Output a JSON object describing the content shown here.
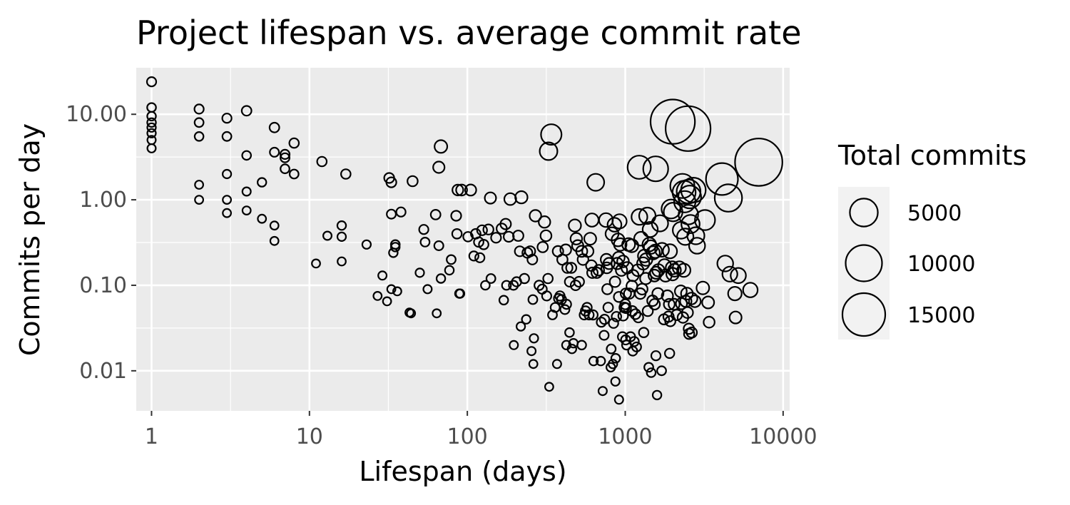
{
  "chart_data": {
    "type": "scatter",
    "title": "Project lifespan vs. average commit rate",
    "xlabel": "Lifespan (days)",
    "ylabel": "Commits per day",
    "x_scale": "log10",
    "y_scale": "log10",
    "xlim": [
      0.8,
      11000
    ],
    "ylim": [
      0.0034,
      35
    ],
    "x_ticks": [
      1,
      10,
      100,
      1000,
      10000
    ],
    "x_tick_labels": [
      "1",
      "10",
      "100",
      "1000",
      "10000"
    ],
    "y_ticks": [
      0.01,
      0.1,
      1,
      10
    ],
    "y_tick_labels": [
      "0.01",
      "0.10",
      "1.00",
      "10.00"
    ],
    "grid": true,
    "point_fill": "none",
    "point_stroke": "#000000",
    "panel_background": "#ebebeb",
    "legend": {
      "title": "Total commits",
      "position": "right",
      "sizes": [
        5000,
        10000,
        15000
      ],
      "labels": [
        "5000",
        "10000",
        "15000"
      ]
    },
    "points": [
      [
        1,
        24,
        24
      ],
      [
        1,
        12,
        12
      ],
      [
        1,
        9.5,
        10
      ],
      [
        1,
        8,
        8
      ],
      [
        1,
        7,
        7
      ],
      [
        1,
        6,
        6
      ],
      [
        1,
        5,
        5
      ],
      [
        1,
        4,
        4
      ],
      [
        2,
        11.5,
        23
      ],
      [
        2,
        8,
        16
      ],
      [
        2,
        5.5,
        11
      ],
      [
        2,
        1.5,
        3
      ],
      [
        2,
        1,
        2
      ],
      [
        3,
        9,
        27
      ],
      [
        3,
        5.5,
        17
      ],
      [
        3,
        2,
        6
      ],
      [
        3,
        1,
        3
      ],
      [
        3,
        0.7,
        2
      ],
      [
        4,
        11,
        44
      ],
      [
        4,
        3.3,
        13
      ],
      [
        4,
        1.25,
        5
      ],
      [
        4,
        0.75,
        3
      ],
      [
        5,
        1.6,
        8
      ],
      [
        5,
        0.6,
        3
      ],
      [
        6,
        7,
        42
      ],
      [
        6,
        3.6,
        22
      ],
      [
        6,
        0.5,
        3
      ],
      [
        6,
        0.33,
        2
      ],
      [
        7,
        3.4,
        24
      ],
      [
        7,
        3.1,
        22
      ],
      [
        7,
        2.3,
        16
      ],
      [
        8,
        4.6,
        37
      ],
      [
        8,
        2,
        16
      ],
      [
        11,
        0.18,
        2
      ],
      [
        12,
        2.8,
        34
      ],
      [
        13,
        0.38,
        5
      ],
      [
        16,
        0.5,
        8
      ],
      [
        16,
        0.37,
        6
      ],
      [
        16,
        0.19,
        3
      ],
      [
        17,
        2,
        34
      ],
      [
        23,
        0.3,
        7
      ],
      [
        27,
        0.075,
        2
      ],
      [
        29,
        0.13,
        4
      ],
      [
        31,
        0.065,
        2
      ],
      [
        32,
        1.8,
        58
      ],
      [
        33,
        1.6,
        53
      ],
      [
        33,
        0.68,
        22
      ],
      [
        33,
        0.09,
        3
      ],
      [
        34,
        0.24,
        8
      ],
      [
        35,
        0.3,
        11
      ],
      [
        35,
        0.28,
        10
      ],
      [
        36,
        0.085,
        3
      ],
      [
        38,
        0.72,
        27
      ],
      [
        43,
        0.048,
        2
      ],
      [
        44,
        0.047,
        2
      ],
      [
        45,
        1.65,
        74
      ],
      [
        50,
        0.14,
        7
      ],
      [
        53,
        0.45,
        24
      ],
      [
        54,
        0.32,
        17
      ],
      [
        56,
        0.09,
        5
      ],
      [
        63,
        0.67,
        42
      ],
      [
        64,
        0.047,
        3
      ],
      [
        66,
        0.29,
        19
      ],
      [
        66,
        2.4,
        158
      ],
      [
        68,
        4.2,
        286
      ],
      [
        68,
        0.12,
        8
      ],
      [
        77,
        0.15,
        12
      ],
      [
        79,
        0.2,
        16
      ],
      [
        85,
        0.65,
        55
      ],
      [
        86,
        0.4,
        34
      ],
      [
        87,
        1.3,
        113
      ],
      [
        89,
        0.08,
        7
      ],
      [
        90,
        0.08,
        7
      ],
      [
        92,
        1.3,
        120
      ],
      [
        101,
        0.37,
        37
      ],
      [
        105,
        1.3,
        137
      ],
      [
        110,
        0.22,
        24
      ],
      [
        113,
        0.4,
        45
      ],
      [
        118,
        0.32,
        38
      ],
      [
        120,
        0.21,
        25
      ],
      [
        124,
        0.44,
        55
      ],
      [
        127,
        0.3,
        38
      ],
      [
        130,
        0.1,
        13
      ],
      [
        136,
        0.45,
        61
      ],
      [
        140,
        1.05,
        147
      ],
      [
        141,
        0.12,
        17
      ],
      [
        152,
        0.36,
        55
      ],
      [
        165,
        0.46,
        76
      ],
      [
        170,
        0.067,
        11
      ],
      [
        175,
        0.52,
        91
      ],
      [
        177,
        0.1,
        18
      ],
      [
        183,
        0.37,
        68
      ],
      [
        187,
        1.02,
        191
      ],
      [
        196,
        0.1,
        20
      ],
      [
        197,
        0.02,
        4
      ],
      [
        205,
        0.11,
        23
      ],
      [
        210,
        0.38,
        80
      ],
      [
        215,
        0.25,
        54
      ],
      [
        218,
        0.033,
        7
      ],
      [
        220,
        1.07,
        235
      ],
      [
        230,
        0.12,
        28
      ],
      [
        236,
        0.04,
        9
      ],
      [
        240,
        0.24,
        58
      ],
      [
        250,
        0.25,
        63
      ],
      [
        255,
        0.017,
        4
      ],
      [
        258,
        0.2,
        52
      ],
      [
        260,
        0.068,
        18
      ],
      [
        262,
        0.012,
        3
      ],
      [
        264,
        0.024,
        6
      ],
      [
        270,
        0.65,
        175
      ],
      [
        285,
        0.1,
        29
      ],
      [
        298,
        0.09,
        27
      ],
      [
        300,
        0.28,
        84
      ],
      [
        308,
        0.55,
        169
      ],
      [
        315,
        0.38,
        120
      ],
      [
        318,
        0.075,
        24
      ],
      [
        324,
        0.12,
        39
      ],
      [
        327,
        3.7,
        1200
      ],
      [
        330,
        0.0065,
        2
      ],
      [
        340,
        5.8,
        1972
      ],
      [
        346,
        0.045,
        16
      ],
      [
        360,
        0.055,
        20
      ],
      [
        370,
        0.012,
        4
      ],
      [
        375,
        0.25,
        94
      ],
      [
        378,
        0.07,
        26
      ],
      [
        386,
        0.075,
        29
      ],
      [
        395,
        0.068,
        27
      ],
      [
        400,
        0.2,
        80
      ],
      [
        415,
        0.052,
        22
      ],
      [
        420,
        0.26,
        109
      ],
      [
        424,
        0.02,
        8
      ],
      [
        425,
        0.06,
        26
      ],
      [
        430,
        0.16,
        69
      ],
      [
        444,
        0.028,
        12
      ],
      [
        445,
        0.11,
        49
      ],
      [
        455,
        0.16,
        73
      ],
      [
        460,
        0.018,
        8
      ],
      [
        470,
        0.021,
        10
      ],
      [
        480,
        0.5,
        240
      ],
      [
        485,
        0.1,
        49
      ],
      [
        490,
        0.35,
        172
      ],
      [
        500,
        0.29,
        145
      ],
      [
        510,
        0.11,
        56
      ],
      [
        530,
        0.02,
        11
      ],
      [
        530,
        0.25,
        132
      ],
      [
        540,
        0.2,
        108
      ],
      [
        550,
        0.045,
        25
      ],
      [
        560,
        0.05,
        28
      ],
      [
        573,
        0.055,
        32
      ],
      [
        580,
        0.25,
        145
      ],
      [
        590,
        0.045,
        27
      ],
      [
        600,
        0.35,
        210
      ],
      [
        610,
        0.17,
        104
      ],
      [
        615,
        0.58,
        357
      ],
      [
        620,
        0.14,
        87
      ],
      [
        625,
        0.045,
        28
      ],
      [
        630,
        0.013,
        8
      ],
      [
        650,
        1.6,
        1040
      ],
      [
        660,
        0.14,
        92
      ],
      [
        680,
        0.15,
        102
      ],
      [
        700,
        0.013,
        9
      ],
      [
        706,
        0.037,
        26
      ],
      [
        720,
        0.0058,
        4
      ],
      [
        735,
        0.026,
        19
      ],
      [
        740,
        0.04,
        30
      ],
      [
        755,
        0.58,
        438
      ],
      [
        760,
        0.2,
        152
      ],
      [
        765,
        0.16,
        122
      ],
      [
        770,
        0.09,
        69
      ],
      [
        780,
        0.055,
        43
      ],
      [
        790,
        0.18,
        142
      ],
      [
        810,
        0.011,
        9
      ],
      [
        815,
        0.018,
        15
      ],
      [
        825,
        0.4,
        330
      ],
      [
        835,
        0.012,
        10
      ],
      [
        843,
        0.036,
        30
      ],
      [
        855,
        0.51,
        436
      ],
      [
        862,
        0.11,
        95
      ],
      [
        866,
        0.0075,
        6
      ],
      [
        870,
        0.014,
        12
      ],
      [
        880,
        0.043,
        38
      ],
      [
        890,
        0.18,
        160
      ],
      [
        900,
        0.34,
        306
      ],
      [
        910,
        0.21,
        191
      ],
      [
        912,
        0.073,
        67
      ],
      [
        914,
        0.0046,
        4
      ],
      [
        920,
        0.56,
        515
      ],
      [
        930,
        0.3,
        279
      ],
      [
        946,
        0.15,
        142
      ],
      [
        960,
        0.025,
        24
      ],
      [
        968,
        0.19,
        184
      ],
      [
        970,
        0.044,
        43
      ],
      [
        988,
        0.055,
        54
      ],
      [
        1000,
        0.06,
        60
      ],
      [
        1006,
        0.023,
        23
      ],
      [
        1010,
        0.08,
        81
      ],
      [
        1012,
        0.054,
        55
      ],
      [
        1020,
        0.02,
        20
      ],
      [
        1030,
        0.16,
        165
      ],
      [
        1050,
        0.3,
        315
      ],
      [
        1060,
        0.08,
        85
      ],
      [
        1080,
        0.025,
        27
      ],
      [
        1100,
        0.29,
        319
      ],
      [
        1102,
        0.098,
        108
      ],
      [
        1108,
        0.05,
        55
      ],
      [
        1115,
        0.017,
        19
      ],
      [
        1120,
        0.13,
        146
      ],
      [
        1140,
        0.022,
        25
      ],
      [
        1160,
        0.046,
        53
      ],
      [
        1180,
        0.019,
        22
      ],
      [
        1200,
        0.15,
        180
      ],
      [
        1210,
        0.042,
        51
      ],
      [
        1226,
        2.4,
        2942
      ],
      [
        1230,
        0.63,
        775
      ],
      [
        1245,
        0.08,
        100
      ],
      [
        1260,
        0.35,
        441
      ],
      [
        1280,
        0.09,
        115
      ],
      [
        1300,
        0.18,
        234
      ],
      [
        1310,
        0.028,
        37
      ],
      [
        1320,
        0.22,
        290
      ],
      [
        1350,
        0.12,
        162
      ],
      [
        1355,
        0.2,
        271
      ],
      [
        1380,
        0.65,
        897
      ],
      [
        1390,
        0.05,
        70
      ],
      [
        1410,
        0.011,
        16
      ],
      [
        1420,
        0.3,
        426
      ],
      [
        1440,
        0.45,
        648
      ],
      [
        1450,
        0.28,
        406
      ],
      [
        1460,
        0.0095,
        14
      ],
      [
        1490,
        0.066,
        98
      ],
      [
        1502,
        0.24,
        360
      ],
      [
        1530,
        0.13,
        199
      ],
      [
        1535,
        0.06,
        92
      ],
      [
        1550,
        0.25,
        388
      ],
      [
        1560,
        2.3,
        3588
      ],
      [
        1565,
        0.015,
        23
      ],
      [
        1570,
        0.14,
        220
      ],
      [
        1590,
        0.0052,
        8
      ],
      [
        1610,
        0.08,
        129
      ],
      [
        1620,
        0.15,
        243
      ],
      [
        1660,
        0.53,
        880
      ],
      [
        1700,
        0.01,
        17
      ],
      [
        1710,
        0.26,
        445
      ],
      [
        1760,
        0.04,
        70
      ],
      [
        1774,
        0.17,
        301
      ],
      [
        1800,
        0.13,
        234
      ],
      [
        1850,
        0.075,
        139
      ],
      [
        1880,
        0.043,
        81
      ],
      [
        1900,
        0.06,
        114
      ],
      [
        1910,
        0.016,
        31
      ],
      [
        1920,
        0.25,
        480
      ],
      [
        1930,
        0.038,
        73
      ],
      [
        1950,
        0.78,
        1521
      ],
      [
        1985,
        0.16,
        318
      ],
      [
        1995,
        0.135,
        269
      ],
      [
        2000,
        8.2,
        16400
      ],
      [
        2010,
        0.72,
        1447
      ],
      [
        2040,
        0.06,
        122
      ],
      [
        2050,
        0.15,
        308
      ],
      [
        2120,
        0.045,
        95
      ],
      [
        2200,
        0.16,
        352
      ],
      [
        2250,
        0.085,
        191
      ],
      [
        2260,
        0.44,
        994
      ],
      [
        2270,
        0.061,
        138
      ],
      [
        2300,
        1.45,
        3335
      ],
      [
        2320,
        0.042,
        97
      ],
      [
        2350,
        0.15,
        353
      ],
      [
        2360,
        1.22,
        2879
      ],
      [
        2385,
        0.95,
        2266
      ],
      [
        2400,
        0.37,
        888
      ],
      [
        2420,
        0.065,
        157
      ],
      [
        2460,
        0.08,
        197
      ],
      [
        2480,
        0.048,
        119
      ],
      [
        2500,
        6.8,
        17000
      ],
      [
        2510,
        0.67,
        1682
      ],
      [
        2520,
        1.25,
        3150
      ],
      [
        2530,
        0.031,
        78
      ],
      [
        2540,
        0.027,
        69
      ],
      [
        2560,
        1.08,
        2765
      ],
      [
        2590,
        0.52,
        1347
      ],
      [
        2630,
        0.07,
        184
      ],
      [
        2640,
        0.028,
        74
      ],
      [
        2700,
        1.3,
        3510
      ],
      [
        2760,
        0.065,
        179
      ],
      [
        2800,
        0.38,
        1064
      ],
      [
        2850,
        0.29,
        827
      ],
      [
        3100,
        0.093,
        288
      ],
      [
        3200,
        0.58,
        1856
      ],
      [
        3350,
        0.063,
        211
      ],
      [
        3400,
        0.037,
        126
      ],
      [
        4100,
        1.75,
        7175
      ],
      [
        4300,
        0.18,
        774
      ],
      [
        4500,
        1.05,
        4725
      ],
      [
        4600,
        0.135,
        621
      ],
      [
        4950,
        0.08,
        396
      ],
      [
        5000,
        0.042,
        210
      ],
      [
        5200,
        0.13,
        676
      ],
      [
        6200,
        0.088,
        546
      ],
      [
        7000,
        2.75,
        19250
      ]
    ]
  }
}
